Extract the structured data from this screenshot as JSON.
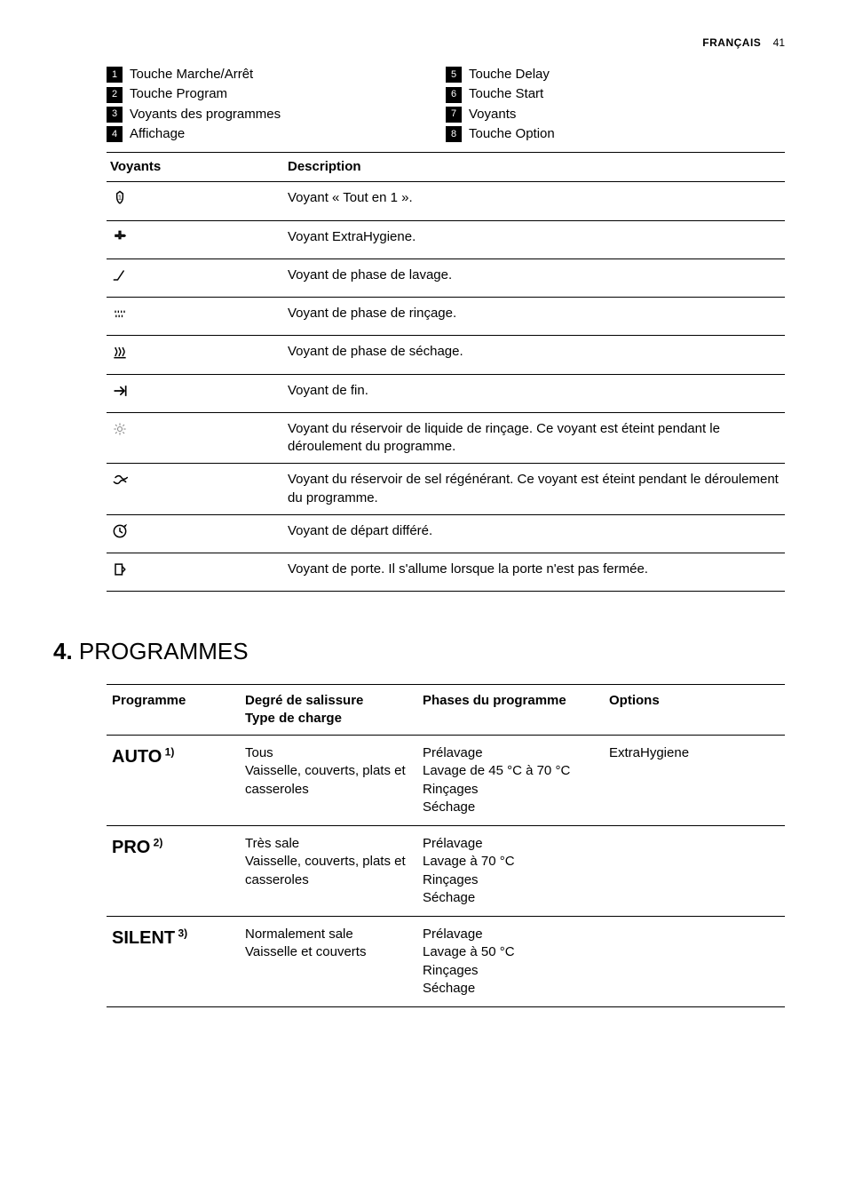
{
  "header": {
    "lang": "FRANÇAIS",
    "page": "41"
  },
  "touches": {
    "left": [
      {
        "n": "1",
        "label": "Touche Marche/Arrêt"
      },
      {
        "n": "2",
        "label": "Touche Program"
      },
      {
        "n": "3",
        "label": "Voyants des programmes"
      },
      {
        "n": "4",
        "label": "Affichage"
      }
    ],
    "right": [
      {
        "n": "5",
        "label": "Touche Delay"
      },
      {
        "n": "6",
        "label": "Touche Start"
      },
      {
        "n": "7",
        "label": "Voyants"
      },
      {
        "n": "8",
        "label": "Touche Option"
      }
    ]
  },
  "voyants": {
    "head_icon": "Voyants",
    "head_desc": "Description",
    "rows": [
      {
        "desc": "Voyant « Tout en 1 »."
      },
      {
        "desc": "Voyant ExtraHygiene."
      },
      {
        "desc": "Voyant de phase de lavage."
      },
      {
        "desc": "Voyant de phase de rinçage."
      },
      {
        "desc": "Voyant de phase de séchage."
      },
      {
        "desc": "Voyant de fin."
      },
      {
        "desc": "Voyant du réservoir de liquide de rinçage. Ce voyant est éteint pendant le déroulement du programme."
      },
      {
        "desc": "Voyant du réservoir de sel régénérant. Ce voyant est éteint pendant le déroulement du programme."
      },
      {
        "desc": "Voyant de départ différé."
      },
      {
        "desc": "Voyant de porte. Il s'allume lorsque la porte n'est pas fermée."
      }
    ]
  },
  "section_programmes": {
    "num": "4.",
    "title": " PROGRAMMES"
  },
  "prog_table": {
    "head": {
      "c1": "Programme",
      "c2": "Degré de salissure\nType de charge",
      "c3": "Phases du programme",
      "c4": "Options"
    },
    "rows": [
      {
        "name": "AUTO",
        "sup": "1)",
        "soil": "Tous\nVaisselle, couverts, plats et casseroles",
        "phases": "Prélavage\nLavage de 45 °C à 70 °C\nRinçages\nSéchage",
        "options": "ExtraHygiene"
      },
      {
        "name": "PRO",
        "sup": "2)",
        "soil": "Très sale\nVaisselle, couverts, plats et casseroles",
        "phases": "Prélavage\nLavage à 70 °C\nRinçages\nSéchage",
        "options": ""
      },
      {
        "name": "SILENT",
        "sup": "3)",
        "soil": "Normalement sale\nVaisselle et couverts",
        "phases": "Prélavage\nLavage à 50 °C\nRinçages\nSéchage",
        "options": ""
      }
    ]
  }
}
